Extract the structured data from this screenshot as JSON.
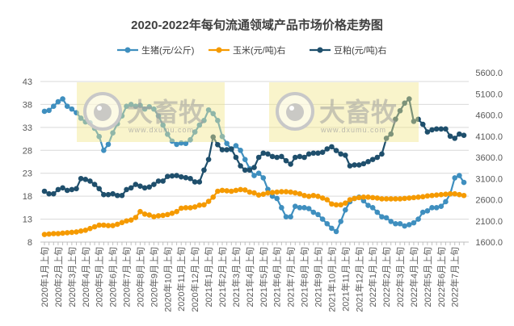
{
  "chart_data": {
    "type": "line",
    "title": "2020-2022年每旬流通领域产品市场价格走势图",
    "grid": true,
    "legend_placement": "top",
    "watermark": {
      "text": "大畜牧",
      "url_text": "www.dxumu.com"
    },
    "y_left": {
      "ticks": [
        "43",
        "38",
        "33",
        "28",
        "23",
        "18",
        "13",
        "8"
      ],
      "range": [
        8,
        43
      ]
    },
    "y_right": {
      "ticks": [
        "5600.0",
        "5100.0",
        "4600.0",
        "4100.0",
        "3600.0",
        "3100.0",
        "2600.0",
        "2100.0",
        "1600.0"
      ],
      "range": [
        1600,
        5600
      ]
    },
    "x_tick_labels": [
      "2020年1月上旬",
      "2020年2月上旬",
      "2020年3月上旬",
      "2020年4月上旬",
      "2020年5月上旬",
      "2020年6月上旬",
      "2020年7月上旬",
      "2020年8月上旬",
      "2020年9月上旬",
      "2020年10月上旬",
      "2020年11月上旬",
      "2020年12月上旬",
      "2021年1月上旬",
      "2021年2月上旬",
      "2021年3月上旬",
      "2021年4月上旬",
      "2021年5月上旬",
      "2021年6月上旬",
      "2021年7月上旬",
      "2021年8月上旬",
      "2021年9月上旬",
      "2021年10月上旬",
      "2021年11月上旬",
      "2021年12月上旬",
      "2022年1月上旬",
      "2022年2月上旬",
      "2022年3月上旬",
      "2022年4月上旬",
      "2022年5月上旬",
      "2022年6月上旬",
      "2022年7月上旬"
    ],
    "series": [
      {
        "name": "生猪(元/公斤)",
        "axis": "left",
        "color": "#3f8fbf",
        "values": [
          36.5,
          36.7,
          37.6,
          38.6,
          39.2,
          37.6,
          37.0,
          36.2,
          35.0,
          34.2,
          34.0,
          32.8,
          31.0,
          28.0,
          29.3,
          31.8,
          33.8,
          35.5,
          37.6,
          38.0,
          37.6,
          37.8,
          37.0,
          37.5,
          37.0,
          35.5,
          33.5,
          31.5,
          30.0,
          29.3,
          29.6,
          29.5,
          30.3,
          32.0,
          33.5,
          34.5,
          36.8,
          36.0,
          34.5,
          31.0,
          29.5,
          28.2,
          29.0,
          28.0,
          26.0,
          24.0,
          22.5,
          23.0,
          22.0,
          19.5,
          18.0,
          17.5,
          15.5,
          13.5,
          13.5,
          15.8,
          15.5,
          15.5,
          15.3,
          14.5,
          14.0,
          13.0,
          12.0,
          11.0,
          10.3,
          12.5,
          15.0,
          16.8,
          17.5,
          17.8,
          17.0,
          16.0,
          15.5,
          14.5,
          13.5,
          13.3,
          12.5,
          12.0,
          12.0,
          11.5,
          11.8,
          12.2,
          13.0,
          14.5,
          14.8,
          15.5,
          15.5,
          15.8,
          16.8,
          18.5,
          22.0,
          22.5,
          21.0
        ]
      },
      {
        "name": "玉米(元/吨)右",
        "axis": "right",
        "color": "#f59a00",
        "values": [
          1780,
          1790,
          1800,
          1800,
          1810,
          1820,
          1830,
          1840,
          1860,
          1880,
          1920,
          1960,
          2000,
          2000,
          1990,
          1990,
          2020,
          2060,
          2100,
          2120,
          2180,
          2320,
          2260,
          2240,
          2200,
          2220,
          2230,
          2250,
          2280,
          2320,
          2400,
          2410,
          2410,
          2430,
          2470,
          2480,
          2560,
          2660,
          2800,
          2820,
          2810,
          2800,
          2820,
          2840,
          2830,
          2780,
          2760,
          2710,
          2730,
          2760,
          2770,
          2780,
          2790,
          2790,
          2780,
          2760,
          2740,
          2700,
          2680,
          2700,
          2680,
          2640,
          2600,
          2500,
          2480,
          2480,
          2520,
          2600,
          2630,
          2650,
          2660,
          2660,
          2650,
          2640,
          2620,
          2620,
          2620,
          2620,
          2620,
          2630,
          2640,
          2650,
          2660,
          2670,
          2690,
          2700,
          2710,
          2720,
          2730,
          2740,
          2740,
          2720,
          2700
        ]
      },
      {
        "name": "豆粕(元/吨)右",
        "axis": "right",
        "color": "#1f4f6c",
        "values": [
          2800,
          2740,
          2740,
          2840,
          2880,
          2820,
          2840,
          2860,
          3100,
          3080,
          3040,
          2960,
          2860,
          2720,
          2720,
          2740,
          2700,
          2700,
          2840,
          2880,
          2960,
          2920,
          2880,
          2900,
          2960,
          3040,
          3040,
          3150,
          3160,
          3170,
          3140,
          3120,
          3100,
          3020,
          3020,
          3300,
          3550,
          4080,
          3900,
          3780,
          3780,
          3800,
          3600,
          3400,
          3300,
          3300,
          3360,
          3600,
          3700,
          3680,
          3620,
          3600,
          3620,
          3520,
          3440,
          3600,
          3620,
          3600,
          3680,
          3700,
          3700,
          3720,
          3800,
          3850,
          3760,
          3680,
          3650,
          3400,
          3420,
          3420,
          3450,
          3500,
          3550,
          3600,
          3680,
          4050,
          4150,
          4500,
          4700,
          4880,
          4980,
          4450,
          4500,
          4380,
          4200,
          4250,
          4270,
          4270,
          4270,
          4100,
          4050,
          4150,
          4120
        ]
      }
    ]
  }
}
